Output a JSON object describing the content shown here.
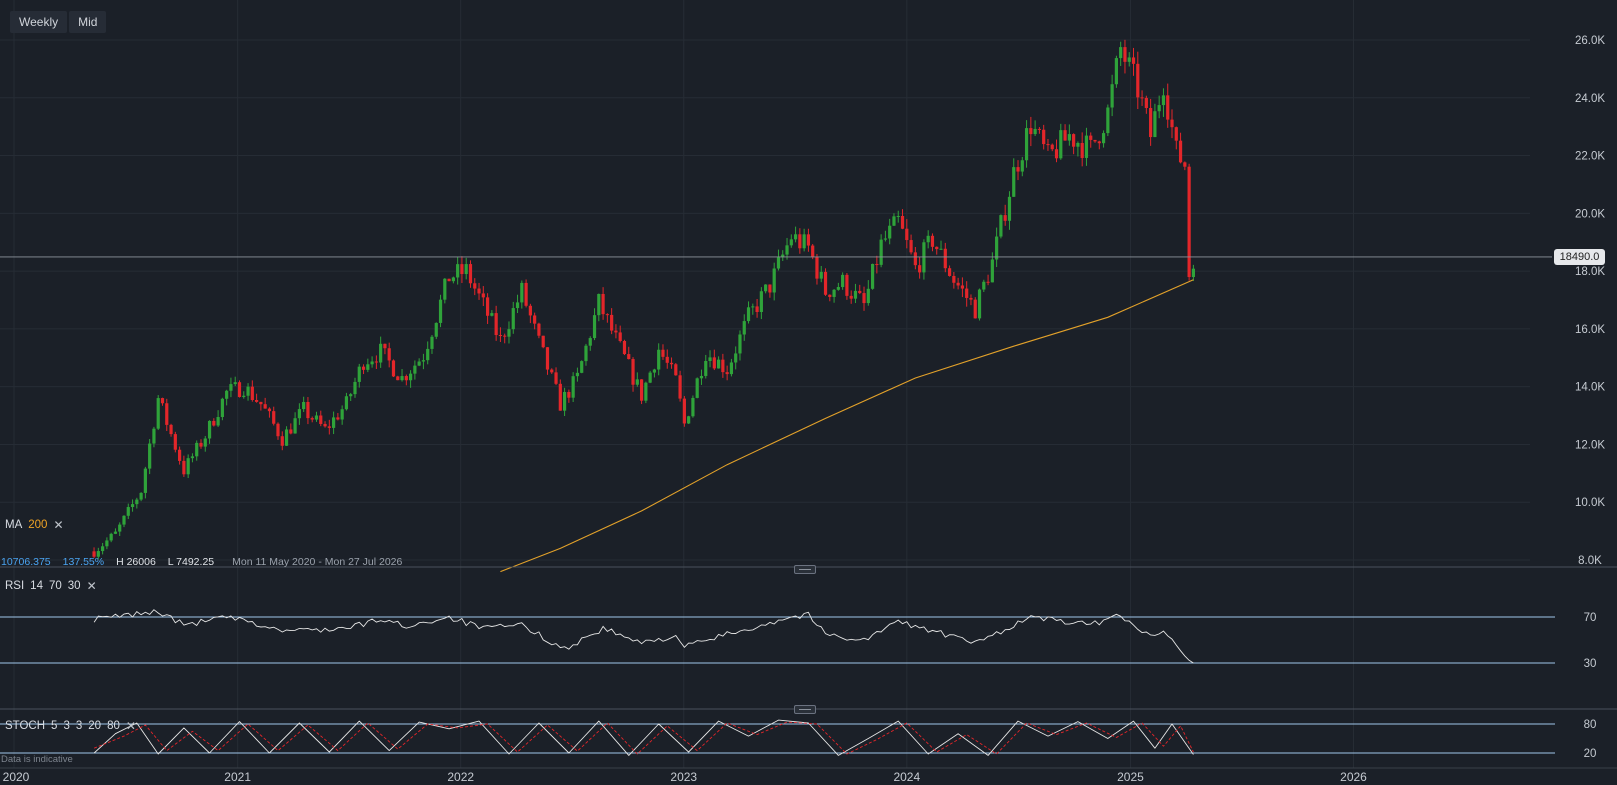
{
  "toolbar": {
    "timeframe": "Weekly",
    "price_type": "Mid"
  },
  "last_price": "18490.0",
  "stats": {
    "change": "10706.375",
    "change_pct": "137.55%",
    "high": "H 26006",
    "low": "L 7492.25",
    "range": "Mon 11 May 2020 - Mon 27 Jul 2026"
  },
  "indicators": {
    "ma": {
      "name": "MA",
      "period": "200"
    },
    "rsi": {
      "name": "RSI",
      "params": [
        "14",
        "70",
        "30"
      ]
    },
    "stoch": {
      "name": "STOCH",
      "params": [
        "5",
        "3",
        "3",
        "20",
        "80"
      ]
    }
  },
  "disclaimer": "Data is indicative",
  "colors": {
    "background": "#1b2028",
    "up": "#2fa33a",
    "down": "#e3262a",
    "ma": "#e2a12a",
    "rsi_line": "#e6e6e6",
    "level_line": "#9fc6ea"
  },
  "chart_data": [
    {
      "type": "candlestick",
      "panel": "price",
      "x_ticks": [
        "2020",
        "2021",
        "2022",
        "2023",
        "2024",
        "2025",
        "2026"
      ],
      "y_ticks": [
        "26.0K",
        "24.0K",
        "22.0K",
        "20.0K",
        "18.0K",
        "16.0K",
        "14.0K",
        "12.0K",
        "10.0K",
        "8.0K"
      ],
      "ylim": [
        7600,
        27000
      ],
      "xlim": [
        "2020-01-01",
        "2026-07-27"
      ],
      "close_path": [
        [
          "2020-05-11",
          8300
        ],
        [
          "2020-06-15",
          8900
        ],
        [
          "2020-07-27",
          10400
        ],
        [
          "2020-08-24",
          13600
        ],
        [
          "2020-10-05",
          11100
        ],
        [
          "2020-11-09",
          12300
        ],
        [
          "2020-12-14",
          13800
        ],
        [
          "2021-01-11",
          14000
        ],
        [
          "2021-02-08",
          13400
        ],
        [
          "2021-03-15",
          12200
        ],
        [
          "2021-04-19",
          13200
        ],
        [
          "2021-05-24",
          12500
        ],
        [
          "2021-06-28",
          13400
        ],
        [
          "2021-07-26",
          14900
        ],
        [
          "2021-08-23",
          15200
        ],
        [
          "2021-09-27",
          14300
        ],
        [
          "2021-11-01",
          15100
        ],
        [
          "2021-12-13",
          17800
        ],
        [
          "2022-01-10",
          18000
        ],
        [
          "2022-02-07",
          16800
        ],
        [
          "2022-03-07",
          15600
        ],
        [
          "2022-04-11",
          17300
        ],
        [
          "2022-05-09",
          15500
        ],
        [
          "2022-06-13",
          13400
        ],
        [
          "2022-07-11",
          14300
        ],
        [
          "2022-08-15",
          16900
        ],
        [
          "2022-09-19",
          15300
        ],
        [
          "2022-10-24",
          13700
        ],
        [
          "2022-11-21",
          15300
        ],
        [
          "2022-12-19",
          14200
        ],
        [
          "2023-01-02",
          12700
        ],
        [
          "2023-02-06",
          15200
        ],
        [
          "2023-03-13",
          14600
        ],
        [
          "2023-04-17",
          16400
        ],
        [
          "2023-05-22",
          17500
        ],
        [
          "2023-06-26",
          19200
        ],
        [
          "2023-07-24",
          18800
        ],
        [
          "2023-08-21",
          17300
        ],
        [
          "2023-09-18",
          17600
        ],
        [
          "2023-10-23",
          16800
        ],
        [
          "2023-11-20",
          18900
        ],
        [
          "2023-12-18",
          19700
        ],
        [
          "2024-01-15",
          18100
        ],
        [
          "2024-02-12",
          19100
        ],
        [
          "2024-03-18",
          17700
        ],
        [
          "2024-04-22",
          16700
        ],
        [
          "2024-05-20",
          18300
        ],
        [
          "2024-06-24",
          21400
        ],
        [
          "2024-07-22",
          23100
        ],
        [
          "2024-08-19",
          21900
        ],
        [
          "2024-09-23",
          22700
        ],
        [
          "2024-10-28",
          22200
        ],
        [
          "2024-11-25",
          23500
        ],
        [
          "2024-12-16",
          25700
        ],
        [
          "2025-01-13",
          24300
        ],
        [
          "2025-02-03",
          22700
        ],
        [
          "2025-02-24",
          24600
        ],
        [
          "2025-03-17",
          22100
        ],
        [
          "2025-03-31",
          21700
        ],
        [
          "2025-04-07",
          17900
        ],
        [
          "2025-04-14",
          18490
        ]
      ],
      "ma_period": 200,
      "ma_path": [
        [
          "2022-03-07",
          7600
        ],
        [
          "2022-06-13",
          8400
        ],
        [
          "2022-10-24",
          9700
        ],
        [
          "2023-03-13",
          11300
        ],
        [
          "2023-08-21",
          12900
        ],
        [
          "2024-01-15",
          14300
        ],
        [
          "2024-06-24",
          15400
        ],
        [
          "2024-11-25",
          16400
        ],
        [
          "2025-04-14",
          17700
        ]
      ],
      "last_price": 18490.0,
      "high": 26006,
      "low": 7492.25
    },
    {
      "type": "line",
      "panel": "rsi",
      "name": "RSI",
      "levels": [
        70,
        30
      ],
      "y_ticks": [
        "70",
        "30"
      ],
      "ylim": [
        15,
        85
      ],
      "path": [
        [
          "2020-05-11",
          68
        ],
        [
          "2020-08-24",
          75
        ],
        [
          "2020-10-05",
          63
        ],
        [
          "2020-12-14",
          70
        ],
        [
          "2021-03-15",
          58
        ],
        [
          "2021-06-28",
          60
        ],
        [
          "2021-08-23",
          68
        ],
        [
          "2021-10-04",
          62
        ],
        [
          "2021-12-13",
          70
        ],
        [
          "2022-02-07",
          60
        ],
        [
          "2022-04-11",
          63
        ],
        [
          "2022-06-20",
          42
        ],
        [
          "2022-08-22",
          60
        ],
        [
          "2022-10-24",
          47
        ],
        [
          "2022-12-19",
          54
        ],
        [
          "2023-01-02",
          44
        ],
        [
          "2023-03-13",
          55
        ],
        [
          "2023-06-26",
          70
        ],
        [
          "2023-07-24",
          72
        ],
        [
          "2023-08-21",
          55
        ],
        [
          "2023-10-23",
          50
        ],
        [
          "2023-12-18",
          66
        ],
        [
          "2024-02-12",
          58
        ],
        [
          "2024-04-22",
          47
        ],
        [
          "2024-07-22",
          70
        ],
        [
          "2024-10-28",
          63
        ],
        [
          "2024-12-16",
          72
        ],
        [
          "2025-02-03",
          52
        ],
        [
          "2025-02-24",
          60
        ],
        [
          "2025-04-14",
          30
        ]
      ]
    },
    {
      "type": "line",
      "panel": "stoch",
      "name": "STOCH",
      "levels": [
        80,
        20
      ],
      "y_ticks": [
        "80",
        "20"
      ],
      "ylim": [
        8,
        92
      ],
      "series": [
        {
          "style": "solid",
          "path": [
            [
              "2020-05-11",
              20
            ],
            [
              "2020-06-15",
              60
            ],
            [
              "2020-07-20",
              82
            ],
            [
              "2020-08-24",
              18
            ],
            [
              "2020-10-05",
              72
            ],
            [
              "2020-11-16",
              20
            ],
            [
              "2021-01-04",
              85
            ],
            [
              "2021-02-22",
              20
            ],
            [
              "2021-04-12",
              82
            ],
            [
              "2021-05-31",
              22
            ],
            [
              "2021-07-19",
              86
            ],
            [
              "2021-09-06",
              25
            ],
            [
              "2021-10-25",
              84
            ],
            [
              "2021-12-13",
              70
            ],
            [
              "2022-01-31",
              86
            ],
            [
              "2022-03-21",
              18
            ],
            [
              "2022-05-09",
              82
            ],
            [
              "2022-06-27",
              20
            ],
            [
              "2022-08-15",
              86
            ],
            [
              "2022-10-03",
              15
            ],
            [
              "2022-11-21",
              80
            ],
            [
              "2023-01-09",
              22
            ],
            [
              "2023-02-27",
              86
            ],
            [
              "2023-04-17",
              55
            ],
            [
              "2023-06-05",
              88
            ],
            [
              "2023-07-24",
              82
            ],
            [
              "2023-09-11",
              15
            ],
            [
              "2023-10-30",
              50
            ],
            [
              "2023-12-18",
              86
            ],
            [
              "2024-02-05",
              18
            ],
            [
              "2024-03-25",
              60
            ],
            [
              "2024-05-13",
              15
            ],
            [
              "2024-07-01",
              86
            ],
            [
              "2024-08-19",
              55
            ],
            [
              "2024-10-07",
              85
            ],
            [
              "2024-11-25",
              50
            ],
            [
              "2025-01-06",
              86
            ],
            [
              "2025-02-10",
              30
            ],
            [
              "2025-03-10",
              80
            ],
            [
              "2025-04-14",
              17
            ]
          ]
        },
        {
          "style": "dashed",
          "path": [
            [
              "2020-05-11",
              30
            ],
            [
              "2020-06-29",
              55
            ],
            [
              "2020-08-03",
              78
            ],
            [
              "2020-09-07",
              25
            ],
            [
              "2020-10-19",
              65
            ],
            [
              "2020-11-30",
              25
            ],
            [
              "2021-01-18",
              80
            ],
            [
              "2021-03-08",
              25
            ],
            [
              "2021-04-26",
              78
            ],
            [
              "2021-06-14",
              25
            ],
            [
              "2021-08-02",
              82
            ],
            [
              "2021-09-20",
              28
            ],
            [
              "2021-11-08",
              80
            ],
            [
              "2021-12-27",
              72
            ],
            [
              "2022-02-14",
              80
            ],
            [
              "2022-04-04",
              22
            ],
            [
              "2022-05-23",
              78
            ],
            [
              "2022-07-11",
              24
            ],
            [
              "2022-08-29",
              82
            ],
            [
              "2022-10-17",
              18
            ],
            [
              "2022-12-05",
              76
            ],
            [
              "2023-01-23",
              25
            ],
            [
              "2023-03-13",
              82
            ],
            [
              "2023-05-01",
              58
            ],
            [
              "2023-06-19",
              84
            ],
            [
              "2023-08-07",
              80
            ],
            [
              "2023-09-25",
              18
            ],
            [
              "2023-11-13",
              48
            ],
            [
              "2024-01-01",
              82
            ],
            [
              "2024-02-19",
              22
            ],
            [
              "2024-04-08",
              58
            ],
            [
              "2024-05-27",
              18
            ],
            [
              "2024-07-15",
              82
            ],
            [
              "2024-09-02",
              58
            ],
            [
              "2024-10-21",
              82
            ],
            [
              "2024-12-09",
              52
            ],
            [
              "2025-01-20",
              82
            ],
            [
              "2025-02-24",
              34
            ],
            [
              "2025-03-24",
              76
            ],
            [
              "2025-04-14",
              22
            ]
          ]
        }
      ]
    }
  ]
}
